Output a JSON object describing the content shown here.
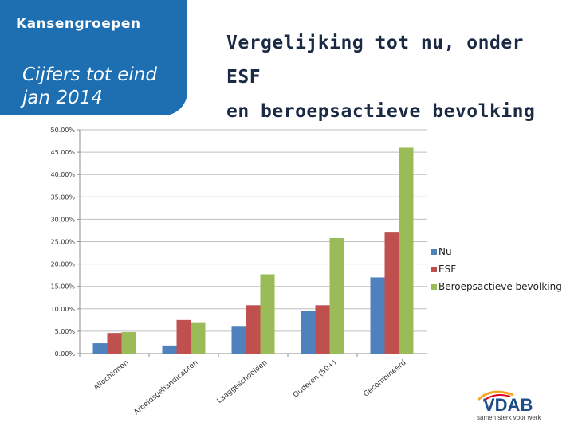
{
  "header": {
    "section_title": "Kansengroepen",
    "subtitle": "Cijfers tot eind jan 2014",
    "title_line1": "Vergelijking tot nu, onder ESF",
    "title_line2": "en  beroepsactieve bevolking"
  },
  "colors": {
    "panel": "#1d6fb2",
    "nu": "#4f81bd",
    "esf": "#c0504d",
    "beroepsactieve": "#9bbb59"
  },
  "chart_data": {
    "type": "bar",
    "categories": [
      "Allochtonen",
      "Arbeidsgehandicapten",
      "Laaggeschoolden",
      "Ouderen (50+)",
      "Gecombineerd"
    ],
    "series": [
      {
        "name": "Nu",
        "values": [
          2.3,
          1.8,
          6.0,
          9.6,
          17.0
        ],
        "color": "#4f81bd"
      },
      {
        "name": "ESF",
        "values": [
          4.6,
          7.5,
          10.8,
          10.8,
          27.2
        ],
        "color": "#c0504d"
      },
      {
        "name": "Beroepsactieve bevolking",
        "values": [
          4.8,
          7.0,
          17.7,
          25.8,
          46.0
        ],
        "color": "#9bbb59"
      }
    ],
    "ylim": [
      0,
      50
    ],
    "y_ticks": [
      "0.00%",
      "5.00%",
      "10.00%",
      "15.00%",
      "20.00%",
      "25.00%",
      "30.00%",
      "35.00%",
      "40.00%",
      "45.00%",
      "50.00%"
    ],
    "grid": true,
    "legend_position": "right"
  },
  "logo": {
    "name": "VDAB",
    "tagline": "samen sterk voor werk"
  }
}
